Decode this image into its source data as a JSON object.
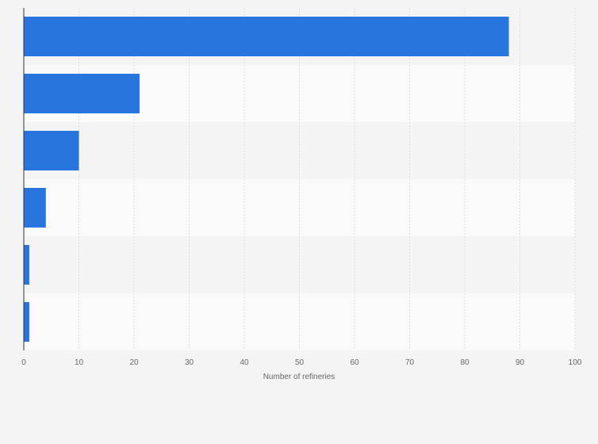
{
  "chart_data": {
    "type": "bar",
    "orientation": "horizontal",
    "categories": [
      "",
      "",
      "",
      "",
      "",
      ""
    ],
    "values": [
      88,
      21,
      10,
      4,
      1,
      1
    ],
    "xlabel": "Number of refineries",
    "ylabel": "",
    "xlim": [
      0,
      100
    ],
    "xticks": [
      0,
      10,
      20,
      30,
      40,
      50,
      60,
      70,
      80,
      90,
      100
    ],
    "grid": true,
    "legend": "none",
    "bar_color": "#2876dd"
  }
}
